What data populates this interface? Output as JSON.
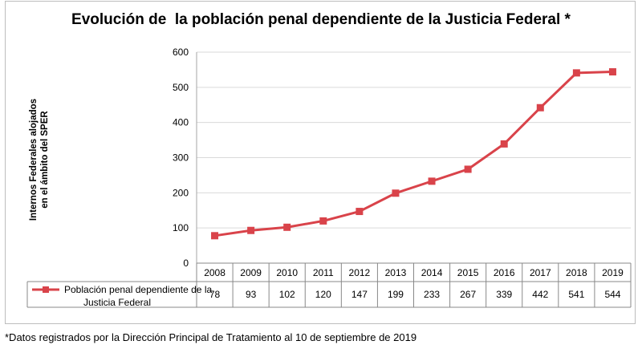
{
  "title": "Evolución de  la población penal dependiente de la Justicia Federal *",
  "y_axis_label_lines": [
    "Internos Federales alojados",
    "en el ámbito del SPER"
  ],
  "footnote": "*Datos registrados por la Dirección Principal de Tratamiento al 10 de septiembre de 2019",
  "legend_lines": [
    "Población penal dependiente de la",
    "Justicia Federal"
  ],
  "colors": {
    "series": "#d9434a",
    "grid": "#d9d9d9",
    "axis": "#a6a6a6",
    "table_border": "#888888"
  },
  "chart_data": {
    "type": "line",
    "title": "Evolución de  la población penal dependiente de la Justicia Federal *",
    "ylabel": "Internos Federales alojados en el ámbito del SPER",
    "xlabel": "",
    "x": [
      "2008",
      "2009",
      "2010",
      "2011",
      "2012",
      "2013",
      "2014",
      "2015",
      "2016",
      "2017",
      "2018",
      "2019"
    ],
    "series": [
      {
        "name": "Población penal dependiente de la Justicia Federal",
        "values": [
          78,
          93,
          102,
          120,
          147,
          199,
          233,
          267,
          339,
          442,
          541,
          544
        ],
        "marker": "square"
      }
    ],
    "ylim": [
      0,
      600
    ],
    "yticks": [
      0,
      100,
      200,
      300,
      400,
      500,
      600
    ],
    "grid": true,
    "legend": "data-table"
  }
}
